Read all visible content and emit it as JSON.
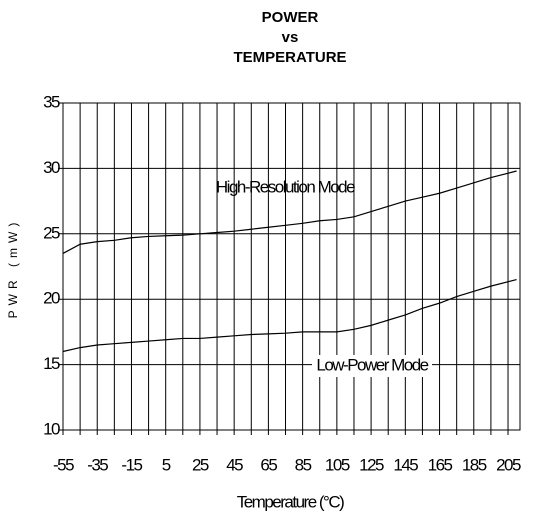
{
  "chart_data": {
    "type": "line",
    "title": [
      "POWER",
      "vs",
      "TEMPERATURE"
    ],
    "xlabel": "Temperature (°C)",
    "ylabel": "PWR (mW)",
    "x": [
      -55,
      -45,
      -35,
      -25,
      -15,
      -5,
      5,
      15,
      25,
      35,
      45,
      55,
      65,
      75,
      85,
      95,
      105,
      115,
      125,
      135,
      145,
      155,
      165,
      175,
      185,
      195,
      210
    ],
    "series": [
      {
        "name": "High-Resolution Mode",
        "color": "#000000",
        "values": [
          23.5,
          24.2,
          24.4,
          24.5,
          24.7,
          24.8,
          24.85,
          24.9,
          25.0,
          25.1,
          25.2,
          25.35,
          25.5,
          25.65,
          25.8,
          26.0,
          26.1,
          26.3,
          26.7,
          27.1,
          27.5,
          27.8,
          28.1,
          28.5,
          28.9,
          29.3,
          29.8
        ]
      },
      {
        "name": "Low-Power Mode",
        "color": "#000000",
        "values": [
          16.0,
          16.3,
          16.5,
          16.6,
          16.7,
          16.8,
          16.9,
          17.0,
          17.0,
          17.1,
          17.2,
          17.3,
          17.35,
          17.4,
          17.5,
          17.5,
          17.5,
          17.7,
          18.0,
          18.4,
          18.8,
          19.3,
          19.7,
          20.2,
          20.6,
          21.0,
          21.5
        ]
      }
    ],
    "xlim": [
      -55,
      212
    ],
    "ylim": [
      10,
      35
    ],
    "xticks": [
      -55,
      -35,
      -15,
      5,
      25,
      45,
      65,
      85,
      105,
      125,
      145,
      165,
      185,
      205
    ],
    "xgrid": [
      -55,
      -45,
      -35,
      -25,
      -15,
      -5,
      5,
      15,
      25,
      35,
      45,
      55,
      65,
      75,
      85,
      95,
      105,
      115,
      125,
      135,
      145,
      155,
      165,
      175,
      185,
      195,
      205
    ],
    "yticks": [
      10,
      15,
      20,
      25,
      30,
      35
    ],
    "grid": true
  }
}
